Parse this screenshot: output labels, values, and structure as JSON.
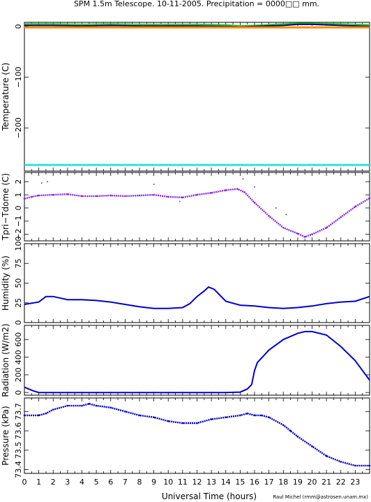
{
  "title": "SPM 1.5m Telescope. 10-11-2005. Precipitation = 0000□□ mm.",
  "xlabel": "Universal Time (hours)",
  "credit": "Raul Michel (rmm@astrosen.unam.mx)",
  "x_ticks": [
    "0",
    "1",
    "2",
    "3",
    "4",
    "5",
    "6",
    "7",
    "8",
    "9",
    "10",
    "11",
    "12",
    "13",
    "14",
    "15",
    "16",
    "17",
    "18",
    "19",
    "20",
    "21",
    "22",
    "23"
  ],
  "colors": {
    "green": "#22cc22",
    "navy": "#000080",
    "orange": "#ff8c00",
    "cyan": "#33e0e0",
    "purple": "#8a2be2",
    "blue": "#0000cd"
  },
  "chart_data": [
    {
      "type": "line",
      "ylabel": "Temperature (C)",
      "xlim": [
        0,
        24
      ],
      "ylim": [
        -285,
        8
      ],
      "y_ticks": [
        {
          "v": 0,
          "t": "0"
        },
        {
          "v": -100,
          "t": "−100"
        },
        {
          "v": -200,
          "t": "−200"
        }
      ],
      "series": [
        {
          "color": "green",
          "x": [
            0,
            2,
            4,
            6,
            8,
            10,
            12,
            14,
            15,
            16,
            18,
            19,
            20,
            22,
            24
          ],
          "y": [
            5,
            5,
            4,
            5,
            4,
            4,
            4,
            3,
            1,
            2,
            5,
            6,
            6,
            5,
            3
          ]
        },
        {
          "color": "navy",
          "x": [
            0,
            2,
            4,
            6,
            8,
            10,
            12,
            14,
            15,
            16,
            18,
            19,
            20,
            22,
            24
          ],
          "y": [
            2,
            2,
            1,
            2,
            1,
            1,
            1,
            0,
            -1,
            0,
            2,
            4,
            4,
            2,
            0
          ]
        },
        {
          "color": "orange",
          "x": [
            0,
            24
          ],
          "y": [
            -2,
            -2
          ]
        },
        {
          "color": "cyan",
          "x": [
            0,
            24
          ],
          "y": [
            -273,
            -273
          ]
        }
      ]
    },
    {
      "type": "scatter",
      "ylabel": "Tpri−Tdome (C)",
      "xlim": [
        0,
        24
      ],
      "ylim": [
        -2.5,
        2.7
      ],
      "y_ticks": [
        {
          "v": 2,
          "t": "2"
        },
        {
          "v": 1,
          "t": "1"
        },
        {
          "v": 0,
          "t": "0"
        },
        {
          "v": -1,
          "t": "−1"
        },
        {
          "v": -2,
          "t": "−2"
        }
      ],
      "series": [
        {
          "color": "purple",
          "x": [
            0,
            0.5,
            1,
            2,
            3,
            4,
            5,
            6,
            7,
            8,
            9,
            10,
            11,
            12,
            13,
            14,
            14.8,
            15.3,
            16,
            17,
            18,
            19,
            19.5,
            20,
            21,
            22,
            23,
            24
          ],
          "y": [
            0.7,
            0.85,
            0.95,
            1.0,
            1.05,
            0.9,
            0.9,
            0.95,
            0.9,
            0.95,
            1.0,
            0.85,
            0.8,
            1.0,
            1.15,
            1.35,
            1.45,
            1.2,
            0.4,
            -0.6,
            -1.5,
            -1.95,
            -2.2,
            -2.0,
            -1.5,
            -0.7,
            0.1,
            0.75
          ]
        },
        {
          "color": "purple",
          "mode": "points",
          "x": [
            1.2,
            1.6,
            9,
            10.8,
            15.2,
            16,
            17.5,
            18.2
          ],
          "y": [
            1.9,
            2.0,
            1.8,
            0.5,
            2.2,
            1.6,
            0,
            -0.5
          ]
        }
      ]
    },
    {
      "type": "line",
      "ylabel": "Humidity (%)",
      "xlim": [
        0,
        24
      ],
      "ylim": [
        0,
        100
      ],
      "y_ticks": [
        {
          "v": 100,
          "t": "100"
        },
        {
          "v": 75,
          "t": "75"
        },
        {
          "v": 50,
          "t": "50"
        },
        {
          "v": 25,
          "t": "25"
        },
        {
          "v": 0,
          "t": "0"
        }
      ],
      "series": [
        {
          "color": "blue",
          "x": [
            0,
            1,
            1.5,
            2,
            3,
            4,
            5,
            6,
            7,
            8,
            9,
            10,
            11,
            11.5,
            12,
            12.5,
            12.8,
            13.2,
            14,
            15,
            16,
            17,
            18,
            19,
            20,
            21,
            22,
            23,
            24
          ],
          "y": [
            23,
            26,
            33,
            33,
            29,
            29,
            28,
            26,
            23,
            20,
            18,
            18,
            19,
            24,
            33,
            40,
            45,
            42,
            27,
            22,
            21,
            19,
            18,
            19,
            21,
            24,
            26,
            27,
            33
          ]
        }
      ]
    },
    {
      "type": "line",
      "ylabel": "Radiation (W/m2)",
      "xlim": [
        0,
        24
      ],
      "ylim": [
        -30,
        760
      ],
      "y_ticks": [
        {
          "v": 600,
          "t": "600"
        },
        {
          "v": 400,
          "t": "400"
        },
        {
          "v": 200,
          "t": "200"
        },
        {
          "v": 0,
          "t": "0"
        }
      ],
      "series": [
        {
          "color": "blue",
          "x": [
            0,
            0.6,
            1,
            5,
            10,
            14,
            15,
            15.5,
            15.8,
            16,
            16.2,
            17,
            18,
            19,
            19.5,
            20,
            21,
            22,
            23,
            24
          ],
          "y": [
            60,
            20,
            0,
            0,
            0,
            0,
            5,
            40,
            90,
            250,
            340,
            480,
            600,
            670,
            690,
            690,
            650,
            520,
            360,
            140
          ]
        }
      ]
    },
    {
      "type": "scatter",
      "ylabel": "Pressure (kPa)",
      "xlim": [
        0,
        24
      ],
      "ylim": [
        73.38,
        73.77
      ],
      "y_ticks": [
        {
          "v": 73.7,
          "t": "73.7"
        },
        {
          "v": 73.6,
          "t": "73.6"
        },
        {
          "v": 73.5,
          "t": "73.5"
        },
        {
          "v": 73.4,
          "t": "73.4"
        }
      ],
      "series": [
        {
          "color": "blue",
          "x": [
            0,
            1,
            1.5,
            2,
            3,
            4,
            4.5,
            5,
            6,
            7,
            8,
            9,
            10,
            11,
            12,
            13,
            14,
            15,
            15.5,
            16,
            16.5,
            17,
            18,
            18.5,
            19,
            20,
            21,
            22,
            23,
            24
          ],
          "y": [
            73.68,
            73.68,
            73.69,
            73.71,
            73.73,
            73.73,
            73.74,
            73.73,
            73.72,
            73.7,
            73.68,
            73.67,
            73.65,
            73.64,
            73.64,
            73.66,
            73.67,
            73.68,
            73.69,
            73.68,
            73.68,
            73.67,
            73.63,
            73.6,
            73.57,
            73.52,
            73.47,
            73.44,
            73.42,
            73.42
          ]
        }
      ]
    }
  ]
}
